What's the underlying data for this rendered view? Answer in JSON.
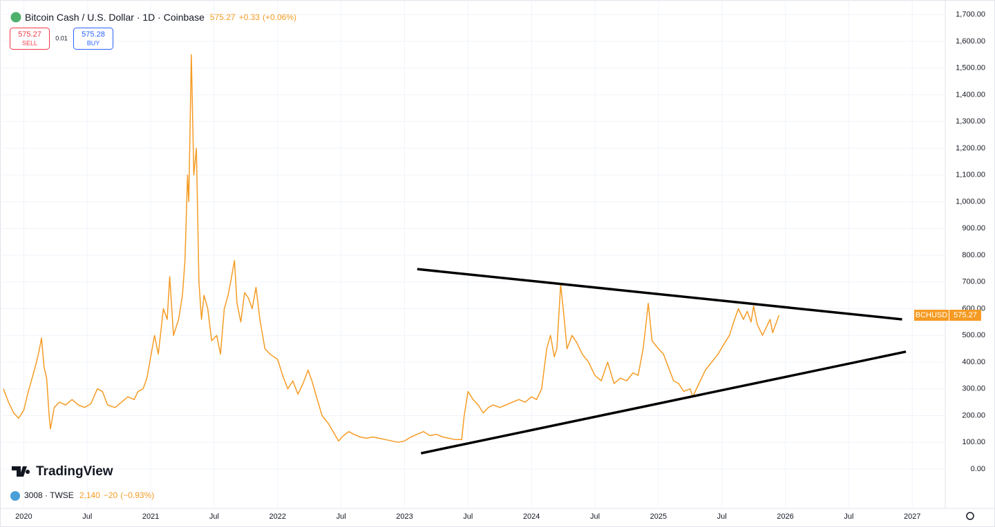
{
  "chart_data": {
    "type": "line",
    "title": "Bitcoin Cash / U.S. Dollar · 1D · Coinbase",
    "last": 575.27,
    "change": "+0.33",
    "change_pct": "(+0.06%)",
    "sell": {
      "price": 575.27,
      "label": "SELL"
    },
    "spread": 0.01,
    "buy": {
      "price": 575.28,
      "label": "BUY"
    },
    "symbol": "BCHUSD",
    "watermark": "TradingView",
    "ticker": {
      "name": "3008 · TWSE",
      "price": "2,140",
      "change": "−20",
      "change_pct": "(−0.93%)"
    },
    "grid": true,
    "xlim": [
      2019.84,
      2027.26
    ],
    "ylim": [
      -142,
      1734
    ],
    "xticks": [
      2020,
      {
        "value": 2020.5,
        "label": "Jul"
      },
      2021,
      {
        "value": 2021.5,
        "label": "Jul"
      },
      2022,
      {
        "value": 2022.5,
        "label": "Jul"
      },
      2023,
      {
        "value": 2023.5,
        "label": "Jul"
      },
      2024,
      {
        "value": 2024.5,
        "label": "Jul"
      },
      2025,
      {
        "value": 2025.5,
        "label": "Jul"
      },
      2026,
      {
        "value": 2026.5,
        "label": "Jul"
      },
      2027
    ],
    "yticks": [
      {
        "value": 0,
        "label": "0.00"
      },
      {
        "value": 100,
        "label": "100.00"
      },
      {
        "value": 200,
        "label": "200.00"
      },
      {
        "value": 300,
        "label": "300.00"
      },
      {
        "value": 400,
        "label": "400.00"
      },
      {
        "value": 500,
        "label": "500.00"
      },
      {
        "value": 600,
        "label": "600.00"
      },
      {
        "value": 700,
        "label": "700.00"
      },
      {
        "value": 800,
        "label": "800.00"
      },
      {
        "value": 900,
        "label": "900.00"
      },
      {
        "value": 1000,
        "label": "1,000.00"
      },
      {
        "value": 1100,
        "label": "1,100.00"
      },
      {
        "value": 1200,
        "label": "1,200.00"
      },
      {
        "value": 1300,
        "label": "1,300.00"
      },
      {
        "value": 1400,
        "label": "1,400.00"
      },
      {
        "value": 1500,
        "label": "1,500.00"
      },
      {
        "value": 1600,
        "label": "1,600.00"
      },
      {
        "value": 1700,
        "label": "1,700.00"
      }
    ],
    "series": [
      {
        "name": "BCHUSD",
        "color": "#f59b23",
        "x": [
          2019.84,
          2019.88,
          2019.92,
          2019.96,
          2020.0,
          2020.03,
          2020.06,
          2020.1,
          2020.12,
          2020.14,
          2020.16,
          2020.18,
          2020.2,
          2020.21,
          2020.24,
          2020.28,
          2020.33,
          2020.38,
          2020.43,
          2020.48,
          2020.53,
          2020.58,
          2020.62,
          2020.66,
          2020.72,
          2020.77,
          2020.82,
          2020.87,
          2020.9,
          2020.94,
          2020.97,
          2021.0,
          2021.03,
          2021.06,
          2021.1,
          2021.13,
          2021.15,
          2021.18,
          2021.22,
          2021.25,
          2021.27,
          2021.29,
          2021.3,
          2021.32,
          2021.34,
          2021.36,
          2021.38,
          2021.4,
          2021.42,
          2021.45,
          2021.48,
          2021.52,
          2021.55,
          2021.58,
          2021.61,
          2021.63,
          2021.66,
          2021.68,
          2021.71,
          2021.74,
          2021.77,
          2021.8,
          2021.83,
          2021.86,
          2021.9,
          2021.94,
          2022.0,
          2022.04,
          2022.08,
          2022.12,
          2022.16,
          2022.2,
          2022.24,
          2022.27,
          2022.3,
          2022.35,
          2022.4,
          2022.45,
          2022.48,
          2022.52,
          2022.56,
          2022.6,
          2022.65,
          2022.7,
          2022.75,
          2022.8,
          2022.85,
          2022.9,
          2022.95,
          2023.0,
          2023.05,
          2023.1,
          2023.15,
          2023.2,
          2023.25,
          2023.3,
          2023.35,
          2023.4,
          2023.45,
          2023.47,
          2023.5,
          2023.54,
          2023.58,
          2023.62,
          2023.66,
          2023.7,
          2023.75,
          2023.8,
          2023.85,
          2023.9,
          2023.95,
          2024.0,
          2024.04,
          2024.08,
          2024.12,
          2024.15,
          2024.18,
          2024.2,
          2024.23,
          2024.25,
          2024.28,
          2024.32,
          2024.36,
          2024.4,
          2024.45,
          2024.5,
          2024.55,
          2024.6,
          2024.65,
          2024.7,
          2024.75,
          2024.8,
          2024.84,
          2024.88,
          2024.92,
          2024.95,
          2025.0,
          2025.04,
          2025.08,
          2025.12,
          2025.16,
          2025.2,
          2025.25,
          2025.27,
          2025.32,
          2025.37,
          2025.42,
          2025.47,
          2025.52,
          2025.56,
          2025.6,
          2025.63,
          2025.67,
          2025.7,
          2025.73,
          2025.75,
          2025.78,
          2025.82,
          2025.85,
          2025.88,
          2025.9,
          2025.95
        ],
        "values": [
          300,
          250,
          210,
          190,
          220,
          280,
          330,
          400,
          440,
          490,
          380,
          340,
          200,
          150,
          230,
          250,
          240,
          260,
          240,
          230,
          245,
          300,
          290,
          240,
          230,
          250,
          270,
          260,
          290,
          300,
          340,
          420,
          500,
          430,
          600,
          560,
          720,
          500,
          560,
          650,
          780,
          1100,
          1000,
          1550,
          1100,
          1200,
          700,
          560,
          650,
          600,
          480,
          500,
          430,
          600,
          650,
          700,
          780,
          620,
          550,
          660,
          640,
          600,
          680,
          560,
          450,
          430,
          410,
          350,
          300,
          330,
          280,
          320,
          370,
          330,
          280,
          200,
          170,
          130,
          105,
          125,
          140,
          130,
          120,
          115,
          120,
          115,
          110,
          105,
          100,
          105,
          120,
          130,
          140,
          125,
          130,
          120,
          115,
          110,
          110,
          200,
          290,
          260,
          240,
          210,
          230,
          240,
          230,
          240,
          250,
          260,
          250,
          270,
          260,
          300,
          450,
          500,
          420,
          450,
          690,
          600,
          450,
          500,
          470,
          430,
          400,
          350,
          330,
          400,
          320,
          340,
          330,
          360,
          350,
          450,
          620,
          480,
          450,
          430,
          380,
          330,
          320,
          290,
          300,
          270,
          320,
          370,
          400,
          430,
          470,
          500,
          560,
          600,
          560,
          590,
          550,
          610,
          540,
          500,
          530,
          560,
          510,
          575.27
        ]
      }
    ],
    "trendlines": [
      {
        "color": "#000000",
        "x": [
          2023.1,
          2026.92
        ],
        "y": [
          748,
          560
        ]
      },
      {
        "color": "#000000",
        "x": [
          2023.13,
          2026.95
        ],
        "y": [
          59,
          439
        ]
      }
    ]
  }
}
